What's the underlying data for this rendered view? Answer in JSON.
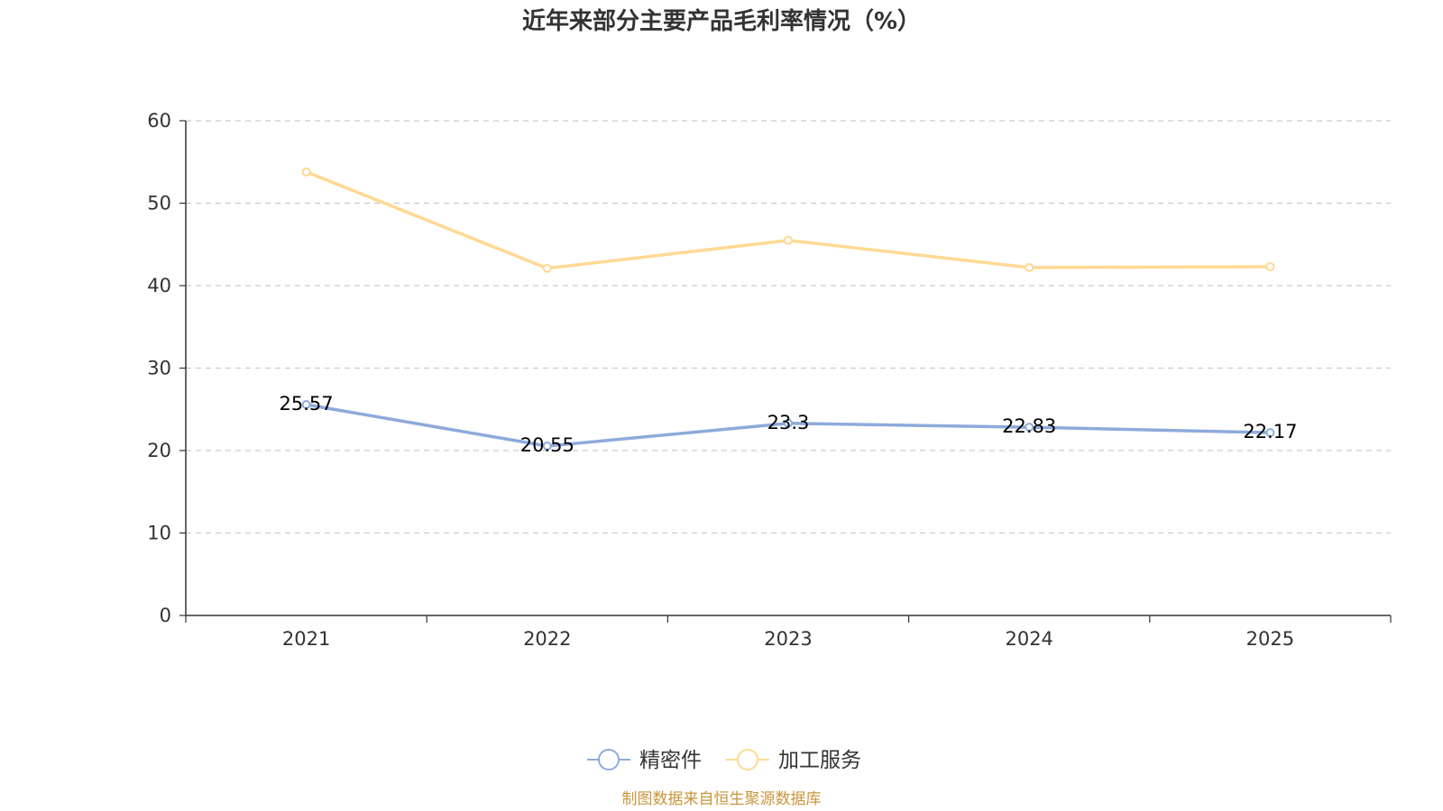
{
  "chart_data": {
    "type": "line",
    "title": "近年来部分主要产品毛利率情况（%）",
    "categories": [
      "2021",
      "2022",
      "2023",
      "2024",
      "2025"
    ],
    "ylim": [
      0,
      60
    ],
    "yticks": [
      0,
      10,
      20,
      30,
      40,
      50,
      60
    ],
    "grid": true,
    "legend_position": "bottom-center",
    "series": [
      {
        "name": "精密件",
        "values": [
          25.57,
          20.55,
          23.3,
          22.83,
          22.17
        ],
        "labels": [
          "25.57",
          "20.55",
          "23.3",
          "22.83",
          "22.17"
        ],
        "color": "#8eaadb",
        "show_labels": true
      },
      {
        "name": "加工服务",
        "values": [
          53.8,
          42.1,
          45.5,
          42.2,
          42.3
        ],
        "color": "#ffd993",
        "show_labels": false
      }
    ]
  },
  "source": {
    "text": "制图数据来自恒生聚源数据库",
    "color": "#c8963c"
  }
}
